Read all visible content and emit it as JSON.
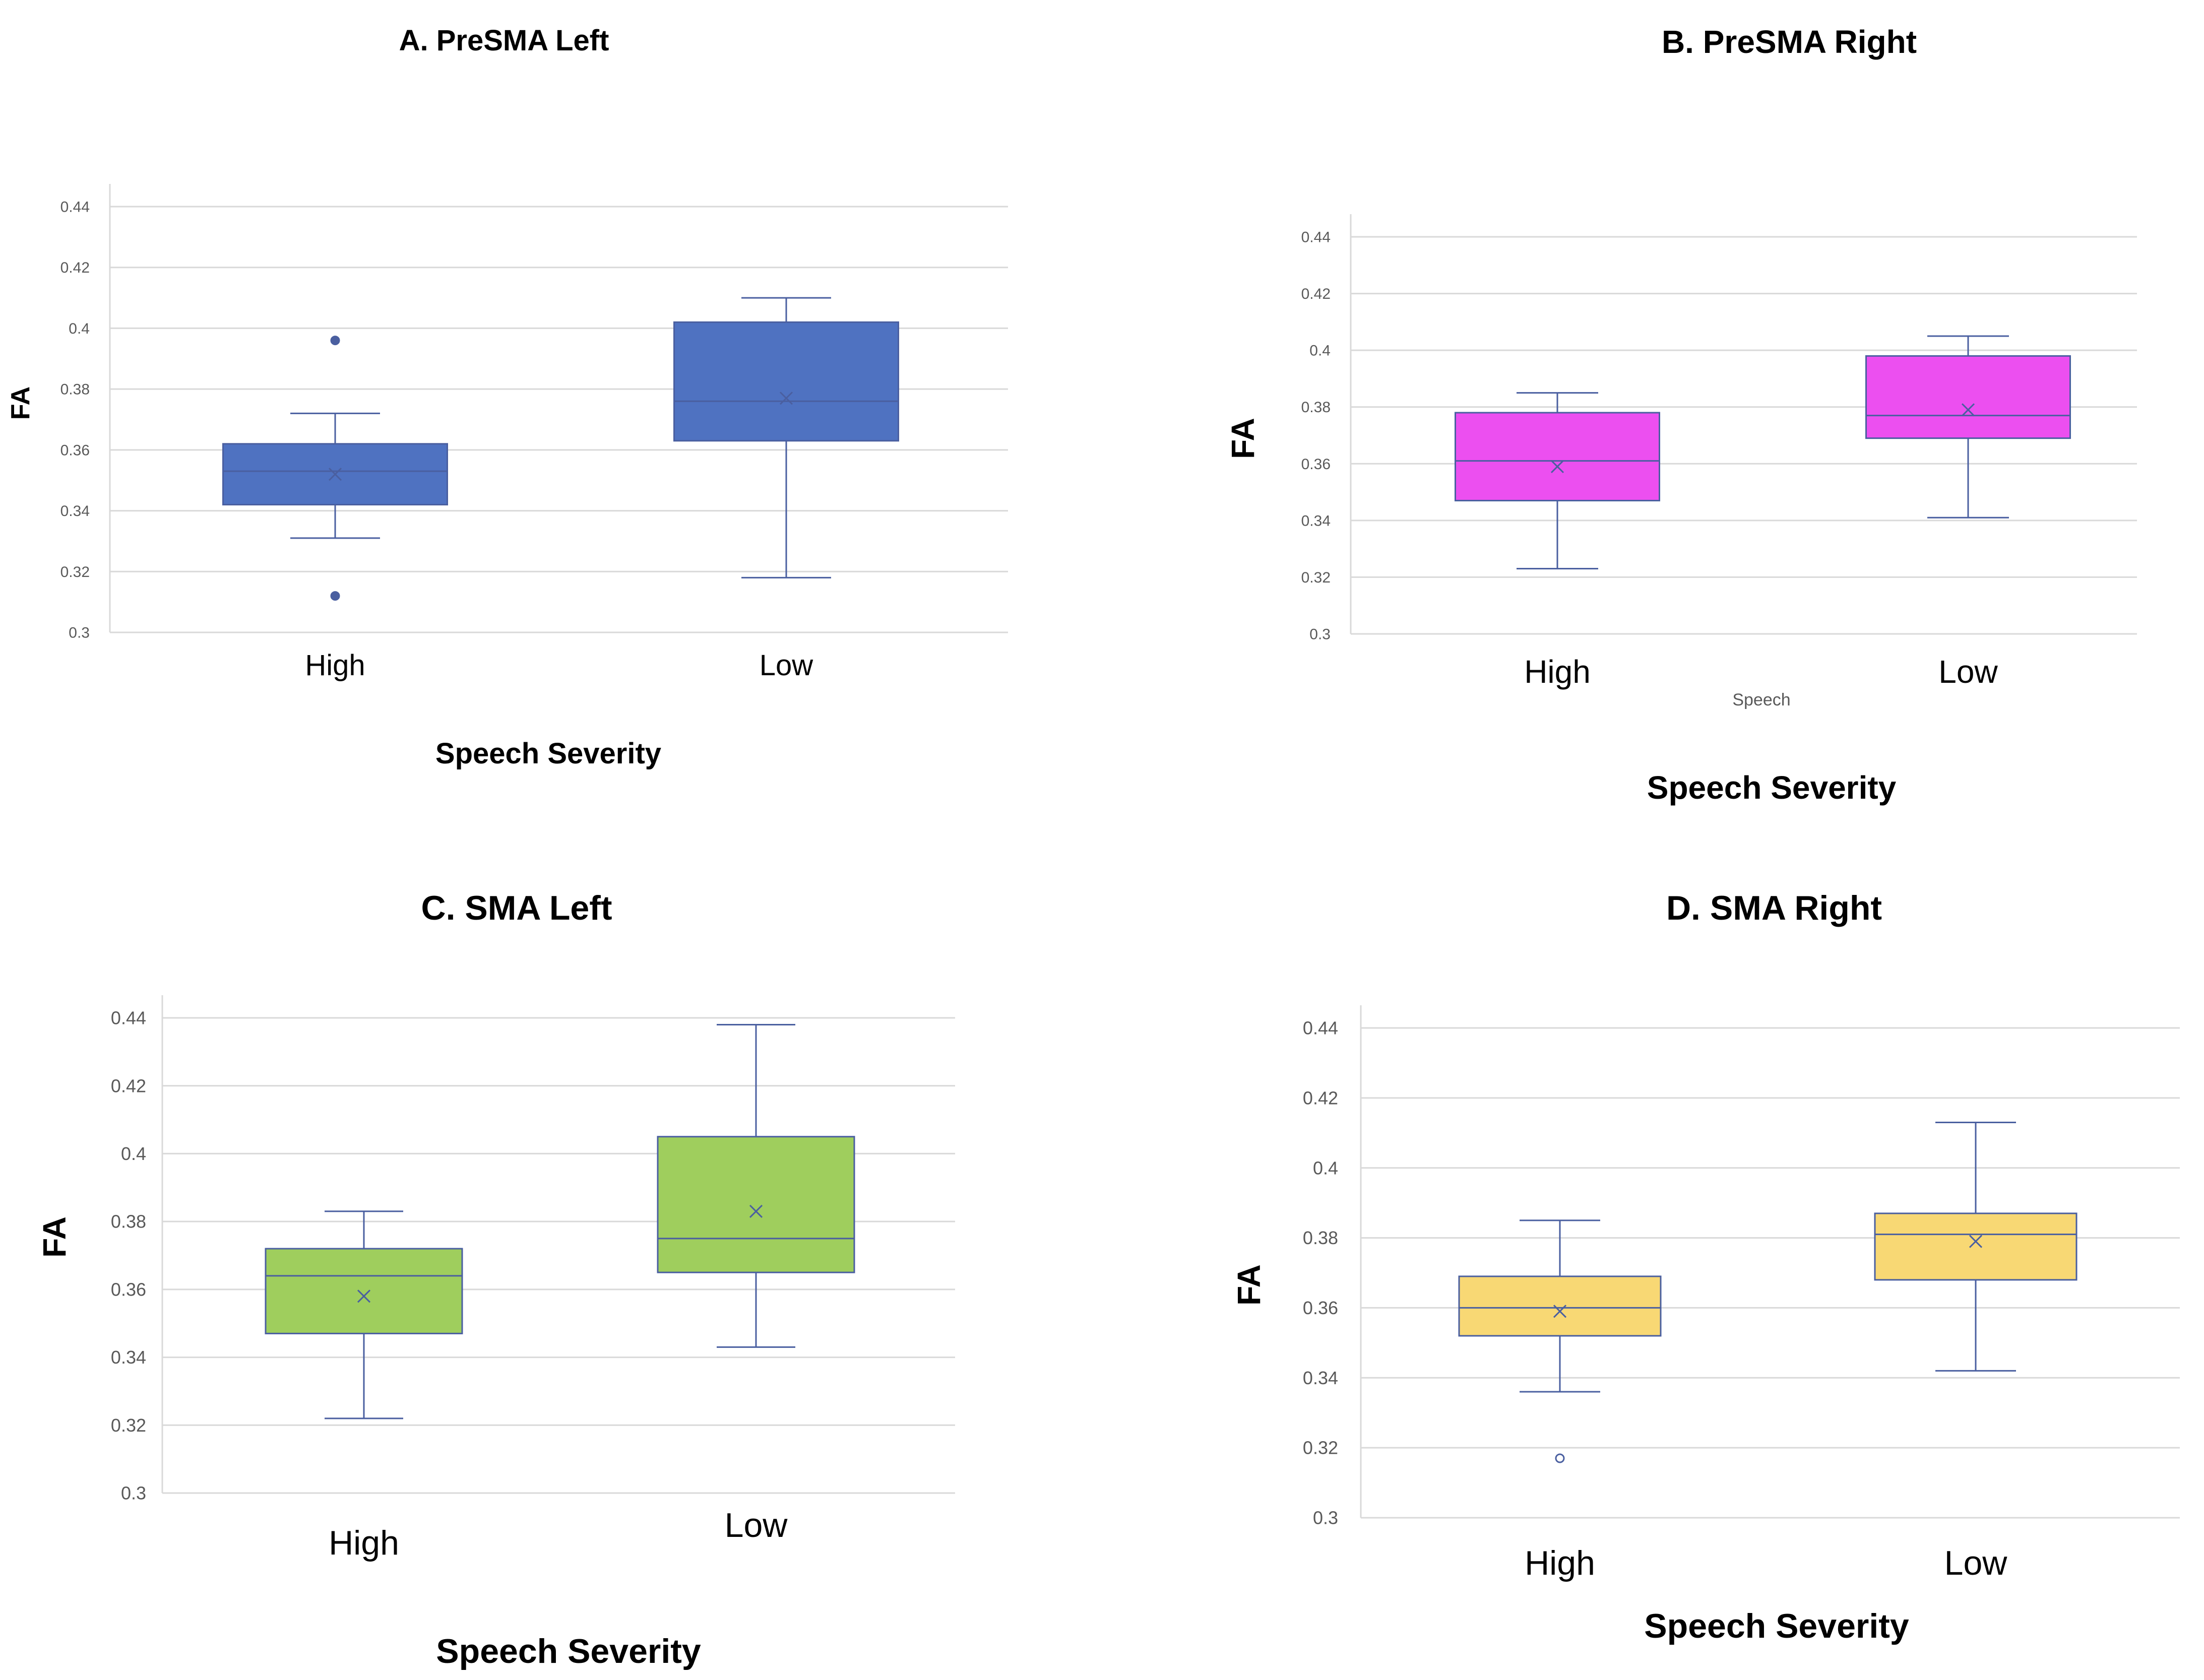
{
  "chart_data": [
    {
      "type": "box",
      "title": "A. PreSMA Left",
      "xlabel": "Speech Severity",
      "ylabel": "FA",
      "ylim": [
        0.3,
        0.44
      ],
      "yticks": [
        "0.3",
        "0.32",
        "0.34",
        "0.36",
        "0.38",
        "0.4",
        "0.42",
        "0.44"
      ],
      "grid": true,
      "color": "#4f72c1",
      "categories": [
        "High",
        "Low"
      ],
      "boxes": [
        {
          "name": "High",
          "min": 0.331,
          "q1": 0.342,
          "median": 0.353,
          "q3": 0.362,
          "max": 0.372,
          "mean": 0.352,
          "outliers": [
            0.396,
            0.312
          ]
        },
        {
          "name": "Low",
          "min": 0.318,
          "q1": 0.363,
          "median": 0.376,
          "q3": 0.402,
          "max": 0.41,
          "mean": 0.377,
          "outliers": []
        }
      ]
    },
    {
      "type": "box",
      "title": "B. PreSMA Right",
      "xlabel": "Speech Severity",
      "ylabel": "FA",
      "extra_label": "Speech",
      "ylim": [
        0.3,
        0.44
      ],
      "yticks": [
        "0.3",
        "0.32",
        "0.34",
        "0.36",
        "0.38",
        "0.4",
        "0.42",
        "0.44"
      ],
      "grid": true,
      "color": "#ec4ff0",
      "categories": [
        "High",
        "Low"
      ],
      "boxes": [
        {
          "name": "High",
          "min": 0.323,
          "q1": 0.347,
          "median": 0.361,
          "q3": 0.378,
          "max": 0.385,
          "mean": 0.359,
          "outliers": []
        },
        {
          "name": "Low",
          "min": 0.341,
          "q1": 0.369,
          "median": 0.377,
          "q3": 0.398,
          "max": 0.405,
          "mean": 0.379,
          "outliers": []
        }
      ]
    },
    {
      "type": "box",
      "title": "C. SMA Left",
      "xlabel": "Speech Severity",
      "ylabel": "FA",
      "ylim": [
        0.3,
        0.44
      ],
      "yticks": [
        "0.3",
        "0.32",
        "0.34",
        "0.36",
        "0.38",
        "0.4",
        "0.42",
        "0.44"
      ],
      "grid": true,
      "color": "#9fce5d",
      "categories": [
        "High",
        "Low"
      ],
      "boxes": [
        {
          "name": "High",
          "min": 0.322,
          "q1": 0.347,
          "median": 0.364,
          "q3": 0.372,
          "max": 0.383,
          "mean": 0.358,
          "outliers": []
        },
        {
          "name": "Low",
          "min": 0.343,
          "q1": 0.365,
          "median": 0.375,
          "q3": 0.405,
          "max": 0.438,
          "mean": 0.383,
          "outliers": []
        }
      ]
    },
    {
      "type": "box",
      "title": "D. SMA Right",
      "xlabel": "Speech Severity",
      "ylabel": "FA",
      "ylim": [
        0.3,
        0.44
      ],
      "yticks": [
        "0.3",
        "0.32",
        "0.34",
        "0.36",
        "0.38",
        "0.4",
        "0.42",
        "0.44"
      ],
      "grid": true,
      "color": "#f8d874",
      "categories": [
        "High",
        "Low"
      ],
      "boxes": [
        {
          "name": "High",
          "min": 0.336,
          "q1": 0.352,
          "median": 0.36,
          "q3": 0.369,
          "max": 0.385,
          "mean": 0.359,
          "outliers": [
            0.317
          ]
        },
        {
          "name": "Low",
          "min": 0.342,
          "q1": 0.368,
          "median": 0.381,
          "q3": 0.387,
          "max": 0.413,
          "mean": 0.379,
          "outliers": []
        }
      ]
    }
  ]
}
